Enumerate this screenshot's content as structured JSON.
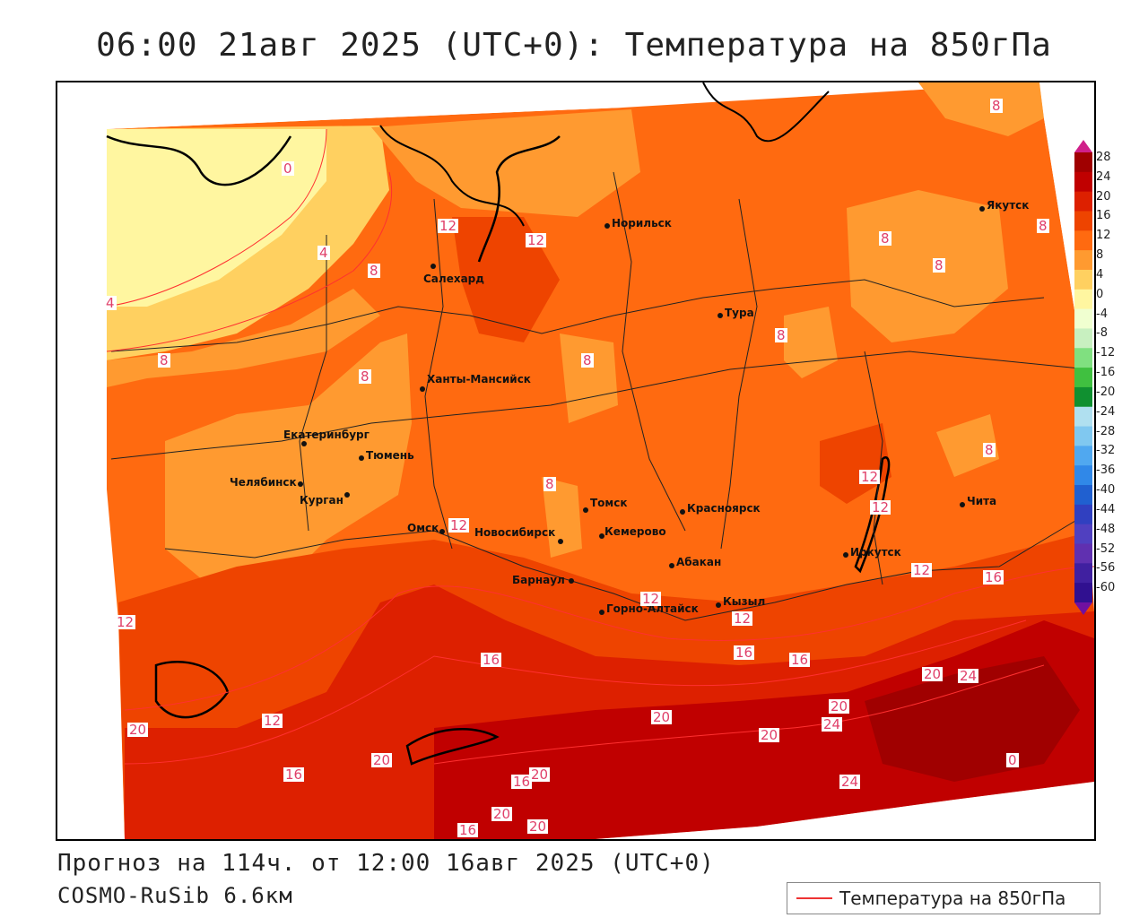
{
  "title": "06:00 21авг 2025 (UTC+0): Температура на 850гПа",
  "forecast_line": "Прогноз на 114ч. от 12:00 16авг 2025 (UTC+0)",
  "model_line": "COSMO-RuSib 6.6км",
  "legend": {
    "label": "Температура на 850гПа",
    "color": "#ee3333"
  },
  "colorbar": {
    "labels": [
      "28",
      "24",
      "20",
      "16",
      "12",
      "8",
      "4",
      "0",
      "-4",
      "-8",
      "-12",
      "-16",
      "-20",
      "-24",
      "-28",
      "-32",
      "-36",
      "-40",
      "-44",
      "-48",
      "-52",
      "-56",
      "-60"
    ],
    "colors": [
      "#a00000",
      "#c00000",
      "#dd2000",
      "#ee4400",
      "#ff6a10",
      "#ff9a30",
      "#ffd060",
      "#fff6a0",
      "#f0ffd0",
      "#c8f0c0",
      "#80e080",
      "#40c040",
      "#109030",
      "#b0e0f0",
      "#80c8f0",
      "#50a8f0",
      "#3088e8",
      "#2060d0",
      "#3040c0",
      "#5040c0",
      "#6030b0",
      "#4020a0",
      "#301090"
    ],
    "top_color": "#d0208a",
    "bottom_color": "#7010a0"
  },
  "cities": [
    {
      "name": "Норильск"
    },
    {
      "name": "Якутск"
    },
    {
      "name": "Салехард"
    },
    {
      "name": "Тура"
    },
    {
      "name": "Ханты-Мансийск"
    },
    {
      "name": "Екатеринбург"
    },
    {
      "name": "Тюмень"
    },
    {
      "name": "Челябинск"
    },
    {
      "name": "Курган"
    },
    {
      "name": "Омск"
    },
    {
      "name": "Новосибирск"
    },
    {
      "name": "Томск"
    },
    {
      "name": "Красноярск"
    },
    {
      "name": "Кемерово"
    },
    {
      "name": "Абакан"
    },
    {
      "name": "Барнаул"
    },
    {
      "name": "Горно-Алтайск"
    },
    {
      "name": "Кызыл"
    },
    {
      "name": "Иркутск"
    },
    {
      "name": "Чита"
    }
  ],
  "contour_labels": [
    "8",
    "8",
    "8",
    "8",
    "8",
    "8",
    "8",
    "8",
    "8",
    "8",
    "8",
    "12",
    "12",
    "12",
    "12",
    "12",
    "12",
    "12",
    "12",
    "12",
    "12",
    "16",
    "16",
    "16",
    "16",
    "16",
    "16",
    "16",
    "20",
    "20",
    "20",
    "20",
    "20",
    "20",
    "20",
    "20",
    "20",
    "24",
    "24",
    "24",
    "4",
    "4",
    "0",
    "0"
  ]
}
